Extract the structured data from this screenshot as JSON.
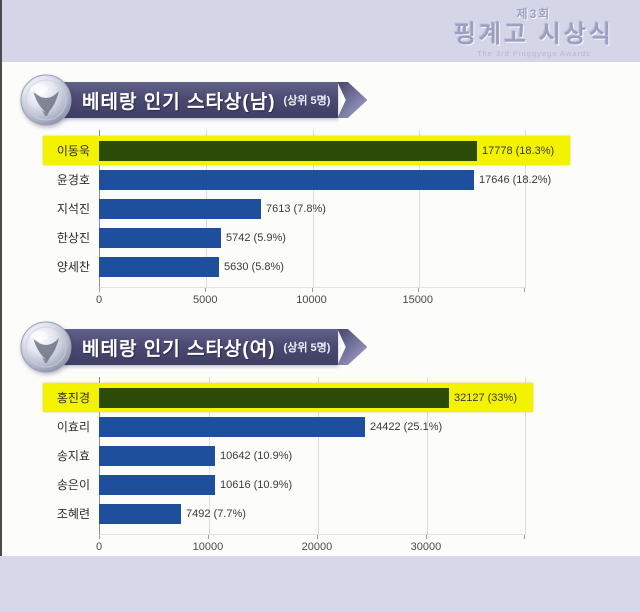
{
  "page": {
    "header": {
      "edition": "제3회",
      "title": "핑계고 시상식",
      "subtitle": "The 3rd Pinggyego Awards"
    },
    "colors": {
      "band": "#d4d6e8",
      "content_bg": "#fcfcfb",
      "banner": "#4a4a72",
      "bar_blue": "#1e4f9c",
      "bar_green": "#2c4a08",
      "highlight_yellow": "#f3f300"
    }
  },
  "chart_data": [
    {
      "type": "bar",
      "orientation": "horizontal",
      "title": "베테랑 인기 스타상(남)",
      "title_note": "(상위 5명)",
      "categories": [
        "이동욱",
        "윤경호",
        "지석진",
        "한상진",
        "양세찬"
      ],
      "values": [
        17778,
        17646,
        7613,
        5742,
        5630
      ],
      "percents": [
        18.3,
        18.2,
        7.8,
        5.9,
        5.8
      ],
      "value_labels": [
        "17778 (18.3%)",
        "17646 (18.2%)",
        "7613 (7.8%)",
        "5742 (5.9%)",
        "5630 (5.8%)"
      ],
      "highlight_index": 0,
      "xlim": [
        0,
        20000
      ],
      "xticks": [
        0,
        5000,
        10000,
        15000
      ],
      "xtick_labels": [
        "0",
        "5000",
        "10000",
        "15000"
      ],
      "grid": true,
      "legend": false,
      "xlabel": "",
      "ylabel": "",
      "bar_color": "#1e4f9c",
      "highlight_bar_color": "#2c4a08",
      "highlight_bg": "#f3f300"
    },
    {
      "type": "bar",
      "orientation": "horizontal",
      "title": "베테랑 인기 스타상(여)",
      "title_note": "(상위 5명)",
      "categories": [
        "홍진경",
        "이효리",
        "송지효",
        "송은이",
        "조혜련"
      ],
      "values": [
        32127,
        24422,
        10642,
        10616,
        7492
      ],
      "percents": [
        33,
        25.1,
        10.9,
        10.9,
        7.7
      ],
      "value_labels": [
        "32127 (33%)",
        "24422 (25.1%)",
        "10642 (10.9%)",
        "10616 (10.9%)",
        "7492 (7.7%)"
      ],
      "highlight_index": 0,
      "xlim": [
        0,
        39000
      ],
      "xticks": [
        0,
        10000,
        20000,
        30000
      ],
      "xtick_labels": [
        "0",
        "10000",
        "20000",
        "30000"
      ],
      "grid": true,
      "legend": false,
      "xlabel": "",
      "ylabel": "",
      "bar_color": "#1e4f9c",
      "highlight_bar_color": "#2c4a08",
      "highlight_bg": "#f3f300"
    }
  ]
}
